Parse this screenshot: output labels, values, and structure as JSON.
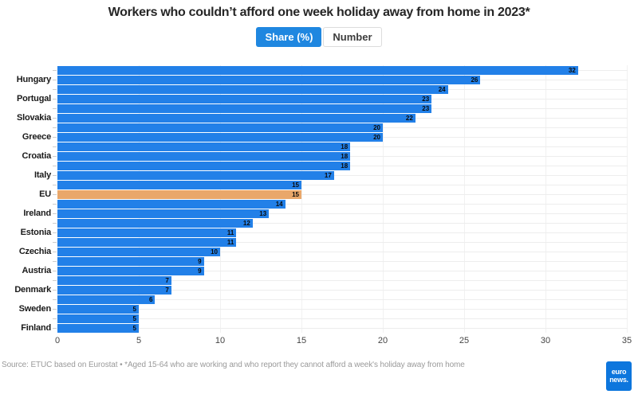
{
  "title": "Workers who couldn’t afford one week holiday away from home in 2023*",
  "tabs": [
    {
      "label": "Share (%)",
      "active": true
    },
    {
      "label": "Number",
      "active": false
    }
  ],
  "chart_data": {
    "type": "bar",
    "orientation": "horizontal",
    "title": "Workers who couldn’t afford one week holiday away from home in 2023*",
    "xlabel": "",
    "ylabel": "",
    "xlim": [
      0,
      35
    ],
    "xticks": [
      0,
      5,
      10,
      15,
      20,
      25,
      30,
      35
    ],
    "grid": true,
    "note": "labels shown on every second bar only",
    "bars": [
      {
        "label": "",
        "value": 32
      },
      {
        "label": "Hungary",
        "value": 26
      },
      {
        "label": "",
        "value": 24
      },
      {
        "label": "Portugal",
        "value": 23
      },
      {
        "label": "",
        "value": 23
      },
      {
        "label": "Slovakia",
        "value": 22
      },
      {
        "label": "",
        "value": 20
      },
      {
        "label": "Greece",
        "value": 20
      },
      {
        "label": "",
        "value": 18
      },
      {
        "label": "Croatia",
        "value": 18
      },
      {
        "label": "",
        "value": 18
      },
      {
        "label": "Italy",
        "value": 17
      },
      {
        "label": "",
        "value": 15
      },
      {
        "label": "EU",
        "value": 15,
        "highlight": true
      },
      {
        "label": "",
        "value": 14
      },
      {
        "label": "Ireland",
        "value": 13
      },
      {
        "label": "",
        "value": 12
      },
      {
        "label": "Estonia",
        "value": 11
      },
      {
        "label": "",
        "value": 11
      },
      {
        "label": "Czechia",
        "value": 10
      },
      {
        "label": "",
        "value": 9
      },
      {
        "label": "Austria",
        "value": 9
      },
      {
        "label": "",
        "value": 7
      },
      {
        "label": "Denmark",
        "value": 7
      },
      {
        "label": "",
        "value": 6
      },
      {
        "label": "Sweden",
        "value": 5
      },
      {
        "label": "",
        "value": 5
      },
      {
        "label": "Finland",
        "value": 5
      }
    ],
    "colors": {
      "bar": "#2280e8",
      "highlight": "#e9a76a"
    }
  },
  "colors": {
    "tab_active_bg": "#1f87e0",
    "logo_bg": "#0d76dd"
  },
  "footer": {
    "source": "Source: ETUC based on Eurostat • *Aged 15-64 who are working and who report they cannot afford a week's holiday away from home"
  },
  "logo": {
    "line1": "euro",
    "line2": "news."
  }
}
